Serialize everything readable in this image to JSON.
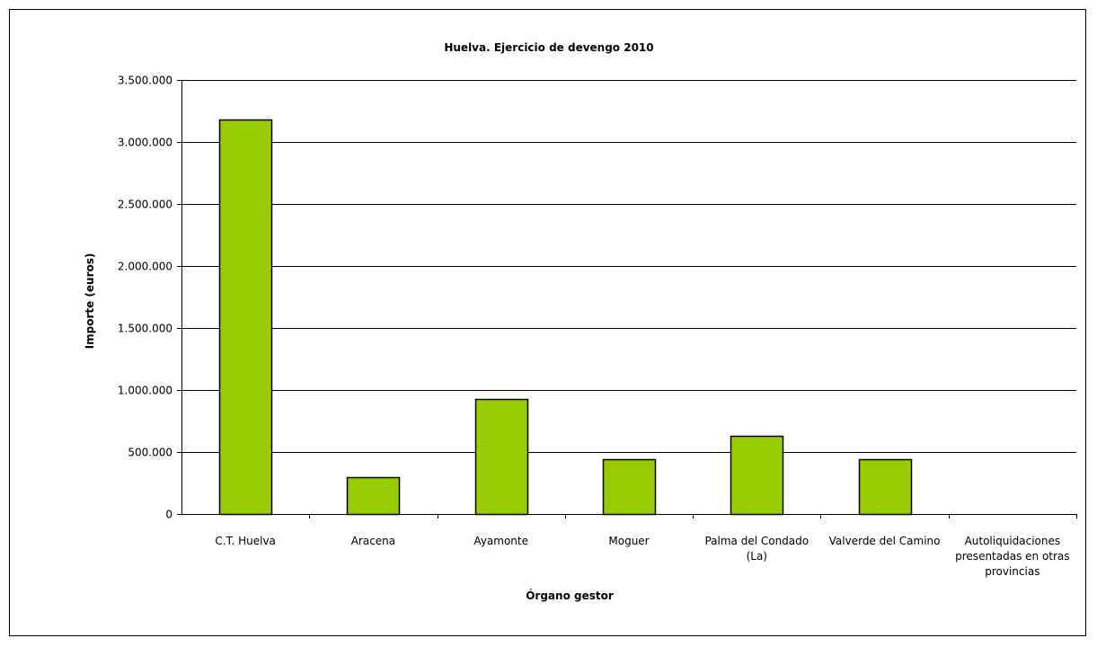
{
  "chart_data": {
    "type": "bar",
    "title": "Huelva. Ejercicio de devengo 2010",
    "xlabel": "Órgano gestor",
    "ylabel": "Importe (euros)",
    "categories": [
      [
        "C.T. Huelva"
      ],
      [
        "Aracena"
      ],
      [
        "Ayamonte"
      ],
      [
        "Moguer"
      ],
      [
        "Palma del Condado",
        "(La)"
      ],
      [
        "Valverde del Camino"
      ],
      [
        "Autoliquidaciones",
        "presentadas en otras",
        "provincias"
      ]
    ],
    "values": [
      3180000,
      295000,
      925000,
      445000,
      630000,
      440000,
      0
    ],
    "ylim": [
      0,
      3500000
    ],
    "yticks": [
      0,
      500000,
      1000000,
      1500000,
      2000000,
      2500000,
      3000000,
      3500000
    ],
    "ytick_labels": [
      "0",
      "500.000",
      "1.000.000",
      "1.500.000",
      "2.000.000",
      "2.500.000",
      "3.000.000",
      "3.500.000"
    ],
    "bar_color": "#99cc00",
    "grid": true
  }
}
